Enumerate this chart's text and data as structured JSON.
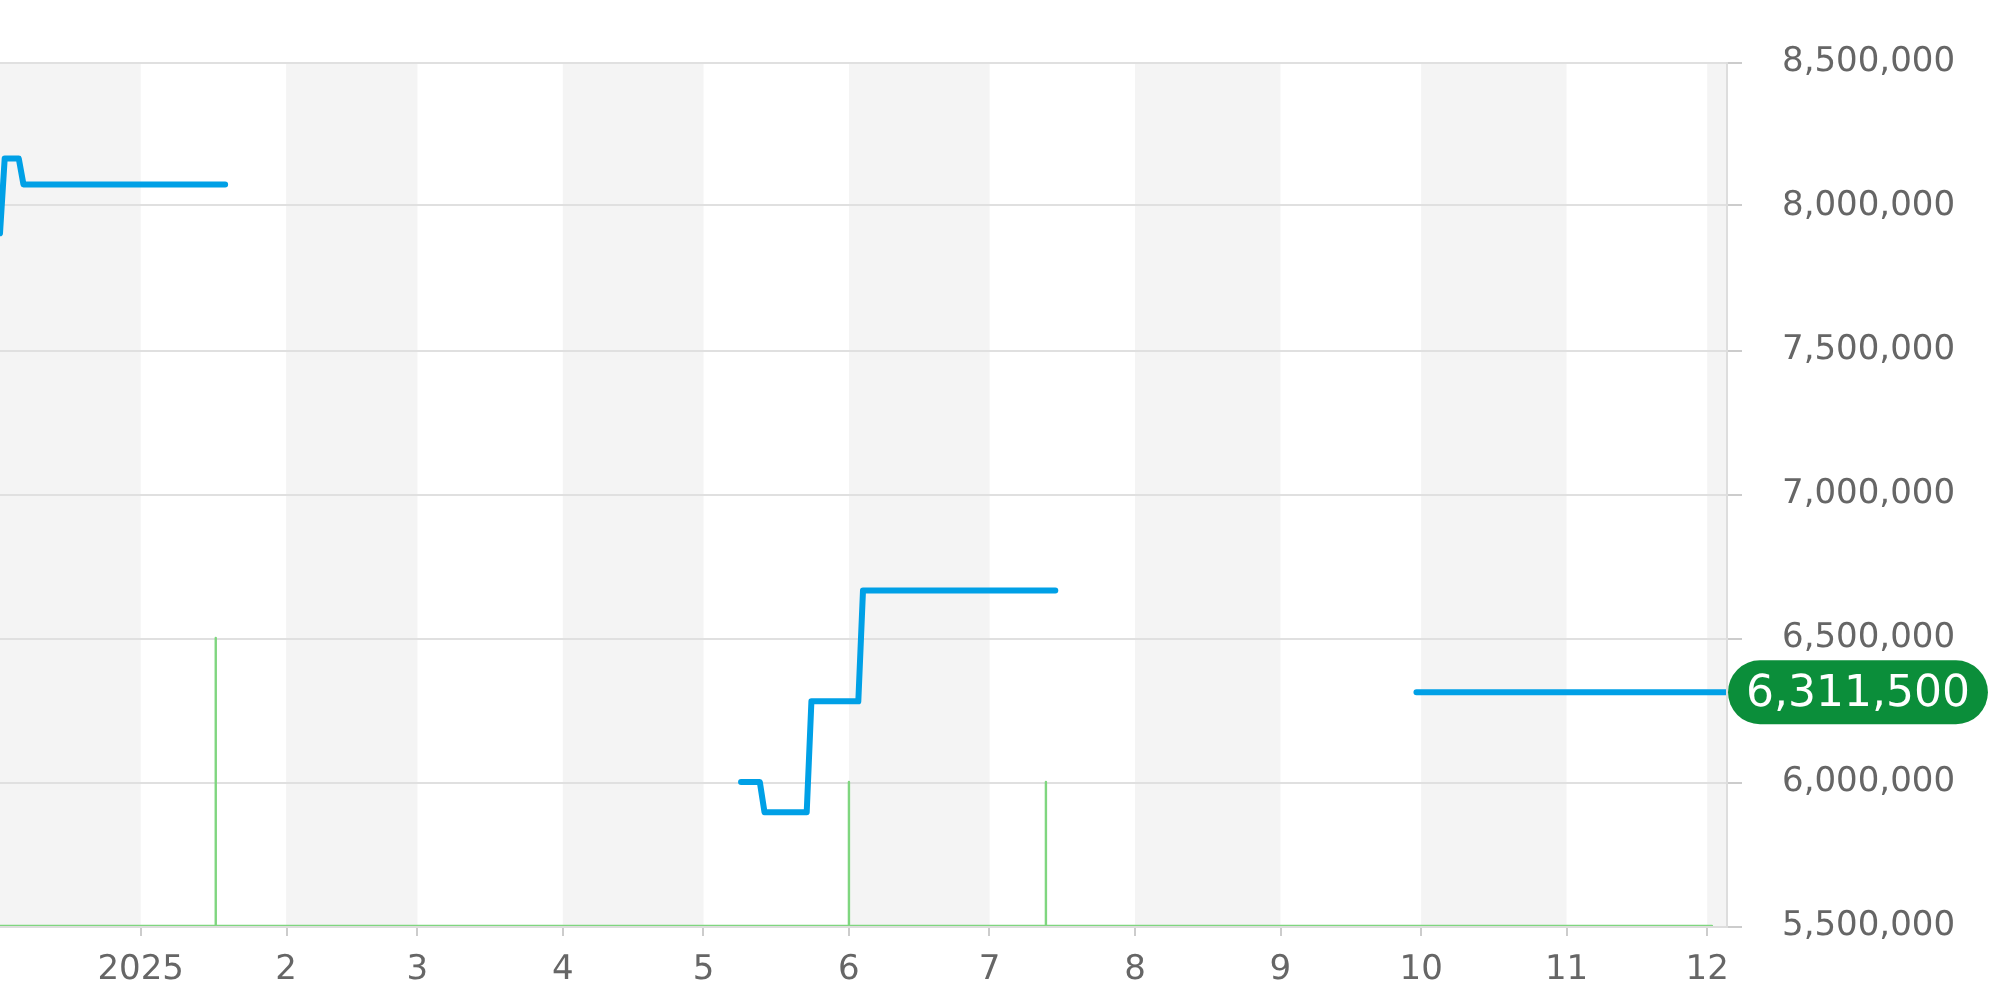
{
  "chart_data": {
    "type": "line",
    "xlim": [
      "2024-12-02",
      "2025-12-05"
    ],
    "xticks": [
      {
        "value": "2025-01-01",
        "label": "2025"
      },
      {
        "value": "2025-02-01",
        "label": "2"
      },
      {
        "value": "2025-03-01",
        "label": "3"
      },
      {
        "value": "2025-04-01",
        "label": "4"
      },
      {
        "value": "2025-05-01",
        "label": "5"
      },
      {
        "value": "2025-06-01",
        "label": "6"
      },
      {
        "value": "2025-07-01",
        "label": "7"
      },
      {
        "value": "2025-08-01",
        "label": "8"
      },
      {
        "value": "2025-09-01",
        "label": "9"
      },
      {
        "value": "2025-10-01",
        "label": "10"
      },
      {
        "value": "2025-11-01",
        "label": "11"
      },
      {
        "value": "2025-12-01",
        "label": "12"
      }
    ],
    "ylim": [
      5500000,
      8500000
    ],
    "yticks": [
      {
        "value": 5500000,
        "label": "5,500,000"
      },
      {
        "value": 6000000,
        "label": "6,000,000"
      },
      {
        "value": 6500000,
        "label": "6,500,000"
      },
      {
        "value": 7000000,
        "label": "7,000,000"
      },
      {
        "value": 7500000,
        "label": "7,500,000"
      },
      {
        "value": 8000000,
        "label": "8,000,000"
      },
      {
        "value": 8500000,
        "label": "8,500,000"
      }
    ],
    "grid": "y",
    "legend": false,
    "marker": "none",
    "line_style": "solid",
    "bands": [
      {
        "axis": "x",
        "from": "2024-12-02",
        "to": "2025-01-01",
        "color": "#f4f4f4"
      },
      {
        "axis": "x",
        "from": "2025-02-01",
        "to": "2025-03-01",
        "color": "#f4f4f4"
      },
      {
        "axis": "x",
        "from": "2025-04-01",
        "to": "2025-05-01",
        "color": "#f4f4f4"
      },
      {
        "axis": "x",
        "from": "2025-06-01",
        "to": "2025-07-01",
        "color": "#f4f4f4"
      },
      {
        "axis": "x",
        "from": "2025-08-01",
        "to": "2025-09-01",
        "color": "#f4f4f4"
      },
      {
        "axis": "x",
        "from": "2025-10-01",
        "to": "2025-11-01",
        "color": "#f4f4f4"
      },
      {
        "axis": "x",
        "from": "2025-12-01",
        "to": "2025-12-05",
        "color": "#f4f4f4"
      }
    ],
    "series": [
      {
        "color": "#00a0e6",
        "x": [
          "2024-12-02",
          "2024-12-03",
          "2024-12-06",
          "2024-12-07",
          "2025-01-19",
          "2025-03-01",
          "2025-05-09",
          "2025-05-13",
          "2025-05-14",
          "2025-05-23",
          "2025-05-24",
          "2025-06-03",
          "2025-06-04",
          "2025-07-15",
          "2025-08-20",
          "2025-09-30",
          "2025-12-05"
        ],
        "values": [
          7905000,
          8165000,
          8165000,
          8075000,
          8075000,
          null,
          6000000,
          6000000,
          5895000,
          5895000,
          6280000,
          6280000,
          6665000,
          6665000,
          null,
          6311500,
          6311500
        ],
        "value_labels": [
          null,
          null,
          null,
          null,
          null,
          null,
          null,
          null,
          null,
          null,
          null,
          null,
          null,
          null,
          null,
          null,
          "6,311,500"
        ]
      },
      {
        "color": "#7fd67f",
        "x": [
          "2024-12-02",
          "2025-01-17",
          "2025-01-17",
          "2025-01-17",
          "2025-06-01",
          "2025-06-01",
          "2025-06-01",
          "2025-07-13",
          "2025-07-13",
          "2025-07-13",
          "2025-12-02"
        ],
        "values": [
          5500000,
          5500000,
          6500000,
          5500000,
          5500000,
          6000000,
          5500000,
          5500000,
          6000000,
          5500000,
          5500000
        ]
      }
    ]
  }
}
